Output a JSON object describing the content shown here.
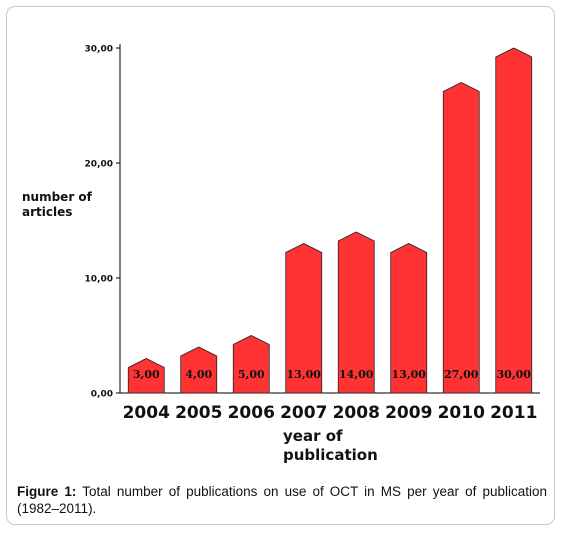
{
  "chart_data": {
    "type": "bar",
    "categories": [
      "2004",
      "2005",
      "2006",
      "2007",
      "2008",
      "2009",
      "2010",
      "2011"
    ],
    "values": [
      3,
      4,
      5,
      13,
      14,
      13,
      27,
      30
    ],
    "data_labels": [
      "3,00",
      "4,00",
      "5,00",
      "13,00",
      "14,00",
      "13,00",
      "27,00",
      "30,00"
    ],
    "ylabel": "number of\narticles",
    "xlabel": "year of\npublication",
    "ylim": [
      0,
      30
    ],
    "yticks": [
      {
        "value": 0,
        "label": "0,00"
      },
      {
        "value": 10,
        "label": "10,00"
      },
      {
        "value": 20,
        "label": "20,00"
      },
      {
        "value": 30,
        "label": "30,00"
      }
    ],
    "bar_color": "#ff3333",
    "bar_shape": "arrow"
  },
  "caption": {
    "label": "Figure 1:",
    "text": " Total number of publications on use of OCT in MS per year of publication (1982–2011)."
  }
}
